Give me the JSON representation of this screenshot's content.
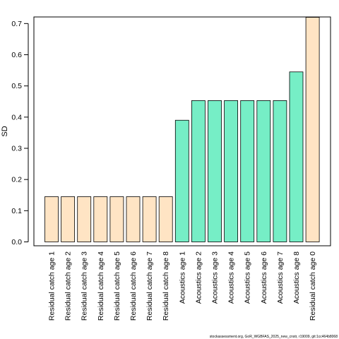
{
  "chart_data": {
    "type": "bar",
    "ylabel": "SD",
    "ylim": [
      0,
      0.72
    ],
    "yticks": [
      "0.0",
      "0.1",
      "0.2",
      "0.3",
      "0.4",
      "0.5",
      "0.6",
      "0.7"
    ],
    "grid": false,
    "categories": [
      "Residual catch age 1",
      "Residual catch age 2",
      "Residual catch age 3",
      "Residual catch age 4",
      "Residual catch age 5",
      "Residual catch age 6",
      "Residual catch age 7",
      "Residual catch age 8",
      "Acoustics age 1",
      "Acoustics age 2",
      "Acoustics age 3",
      "Acoustics age 4",
      "Acoustics age 5",
      "Acoustics age 6",
      "Acoustics age 7",
      "Acoustics age 8",
      "Residual catch age 0"
    ],
    "values": [
      0.145,
      0.145,
      0.145,
      0.145,
      0.145,
      0.145,
      0.145,
      0.145,
      0.39,
      0.453,
      0.453,
      0.453,
      0.453,
      0.453,
      0.453,
      0.545,
      0.72
    ],
    "bar_colors": [
      "#FFE4C4",
      "#FFE4C4",
      "#FFE4C4",
      "#FFE4C4",
      "#FFE4C4",
      "#FFE4C4",
      "#FFE4C4",
      "#FFE4C4",
      "#76EEC6",
      "#76EEC6",
      "#76EEC6",
      "#76EEC6",
      "#76EEC6",
      "#76EEC6",
      "#76EEC6",
      "#76EEC6",
      "#FFE4C4"
    ]
  },
  "footer": "stockassessment.org, GoR_WGBFAS_2025_new_cnstr, r19009, git:1cc464b8068"
}
